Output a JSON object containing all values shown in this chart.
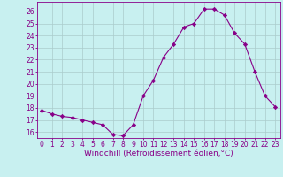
{
  "x": [
    0,
    1,
    2,
    3,
    4,
    5,
    6,
    7,
    8,
    9,
    10,
    11,
    12,
    13,
    14,
    15,
    16,
    17,
    18,
    19,
    20,
    21,
    22,
    23
  ],
  "y": [
    17.8,
    17.5,
    17.3,
    17.2,
    17.0,
    16.8,
    16.6,
    15.8,
    15.7,
    16.6,
    19.0,
    20.3,
    22.2,
    23.3,
    24.7,
    25.0,
    26.2,
    26.2,
    25.7,
    24.2,
    23.3,
    21.0,
    19.0,
    18.1
  ],
  "line_color": "#880088",
  "marker": "D",
  "marker_size": 2.2,
  "bg_color": "#c8f0f0",
  "grid_color": "#aacccc",
  "xlabel": "Windchill (Refroidissement éolien,°C)",
  "ylim": [
    15.5,
    26.8
  ],
  "xlim": [
    -0.5,
    23.5
  ],
  "xticks": [
    0,
    1,
    2,
    3,
    4,
    5,
    6,
    7,
    8,
    9,
    10,
    11,
    12,
    13,
    14,
    15,
    16,
    17,
    18,
    19,
    20,
    21,
    22,
    23
  ],
  "yticks": [
    16,
    17,
    18,
    19,
    20,
    21,
    22,
    23,
    24,
    25,
    26
  ],
  "axis_color": "#880088",
  "tick_label_fontsize": 5.5,
  "xlabel_fontsize": 6.5,
  "linewidth": 0.8
}
